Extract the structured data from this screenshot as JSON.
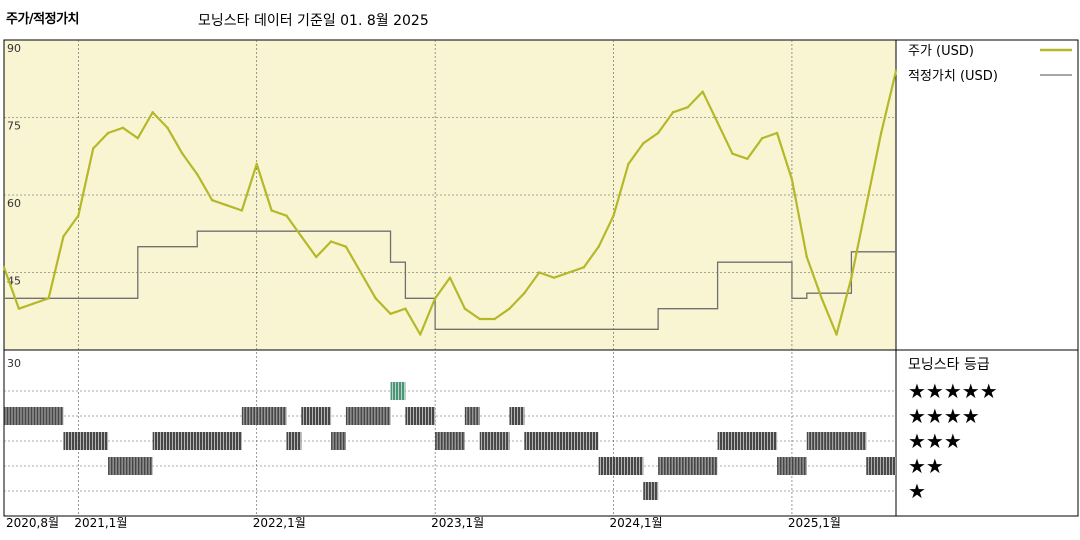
{
  "header": {
    "title": "주가/적정가치",
    "subtitle": "모닝스타 데이터 기준일 01. 8월 2025"
  },
  "colors": {
    "price_line": "#b5b829",
    "fair_value_line": "#707070",
    "plot_bg": "#f9f5d3",
    "rating_bar": "#333333",
    "rating_highlight": "#3a8a6a"
  },
  "chart_data": {
    "type": "line",
    "title": "주가/적정가치",
    "ylim": [
      30,
      90
    ],
    "y_ticks": [
      30,
      45,
      60,
      75,
      90
    ],
    "x_tick_labels": [
      "2020,8월",
      "2021,1월",
      "2022,1월",
      "2023,1월",
      "2024,1월",
      "2025,1월"
    ],
    "x_tick_dates": [
      "2020-08",
      "2021-01",
      "2022-01",
      "2023-01",
      "2024-01",
      "2025-01"
    ],
    "x_range": [
      "2020-08",
      "2025-08"
    ],
    "grid": true,
    "legend_position": "right",
    "series": [
      {
        "name": "주가 (USD)",
        "x": [
          "2020-08",
          "2020-09",
          "2020-10",
          "2020-11",
          "2020-12",
          "2021-01",
          "2021-02",
          "2021-03",
          "2021-04",
          "2021-05",
          "2021-06",
          "2021-07",
          "2021-08",
          "2021-09",
          "2021-10",
          "2021-11",
          "2021-12",
          "2022-01",
          "2022-02",
          "2022-03",
          "2022-04",
          "2022-05",
          "2022-06",
          "2022-07",
          "2022-08",
          "2022-09",
          "2022-10",
          "2022-11",
          "2022-12",
          "2023-01",
          "2023-02",
          "2023-03",
          "2023-04",
          "2023-05",
          "2023-06",
          "2023-07",
          "2023-08",
          "2023-09",
          "2023-10",
          "2023-11",
          "2023-12",
          "2024-01",
          "2024-02",
          "2024-03",
          "2024-04",
          "2024-05",
          "2024-06",
          "2024-07",
          "2024-08",
          "2024-09",
          "2024-10",
          "2024-11",
          "2024-12",
          "2025-01",
          "2025-02",
          "2025-03",
          "2025-04",
          "2025-05",
          "2025-06",
          "2025-07",
          "2025-08"
        ],
        "values": [
          46,
          38,
          39,
          40,
          52,
          56,
          69,
          72,
          73,
          71,
          76,
          73,
          68,
          64,
          59,
          58,
          57,
          66,
          57,
          56,
          52,
          48,
          51,
          50,
          45,
          40,
          37,
          38,
          33,
          40,
          44,
          38,
          36,
          36,
          38,
          41,
          45,
          44,
          45,
          46,
          50,
          56,
          66,
          70,
          72,
          76,
          77,
          80,
          74,
          68,
          67,
          71,
          72,
          63,
          48,
          40,
          33,
          44,
          58,
          72,
          84
        ]
      },
      {
        "name": "적정가치 (USD)",
        "x": [
          "2020-08",
          "2020-09",
          "2020-10",
          "2020-11",
          "2020-12",
          "2021-01",
          "2021-02",
          "2021-03",
          "2021-04",
          "2021-05",
          "2021-06",
          "2021-07",
          "2021-08",
          "2021-09",
          "2021-10",
          "2021-11",
          "2021-12",
          "2022-01",
          "2022-02",
          "2022-03",
          "2022-04",
          "2022-05",
          "2022-06",
          "2022-07",
          "2022-08",
          "2022-09",
          "2022-10",
          "2022-11",
          "2022-12",
          "2023-01",
          "2023-02",
          "2023-03",
          "2023-04",
          "2023-05",
          "2023-06",
          "2023-07",
          "2023-08",
          "2023-09",
          "2023-10",
          "2023-11",
          "2023-12",
          "2024-01",
          "2024-02",
          "2024-03",
          "2024-04",
          "2024-05",
          "2024-06",
          "2024-07",
          "2024-08",
          "2024-09",
          "2024-10",
          "2024-11",
          "2024-12",
          "2025-01",
          "2025-02",
          "2025-03",
          "2025-04",
          "2025-05",
          "2025-06",
          "2025-07",
          "2025-08"
        ],
        "values": [
          40,
          40,
          40,
          40,
          40,
          40,
          40,
          40,
          40,
          50,
          50,
          50,
          50,
          53,
          53,
          53,
          53,
          53,
          53,
          53,
          53,
          53,
          53,
          53,
          53,
          53,
          47,
          40,
          40,
          34,
          34,
          34,
          34,
          34,
          34,
          34,
          34,
          34,
          34,
          34,
          34,
          34,
          34,
          34,
          38,
          38,
          38,
          38,
          47,
          47,
          47,
          47,
          47,
          40,
          41,
          41,
          41,
          49,
          49,
          49,
          49
        ]
      }
    ]
  },
  "rating_panel": {
    "title": "모닝스타 등급",
    "levels": [
      "★★★★★",
      "★★★★",
      "★★★",
      "★★",
      "★"
    ],
    "y_label": "30"
  }
}
